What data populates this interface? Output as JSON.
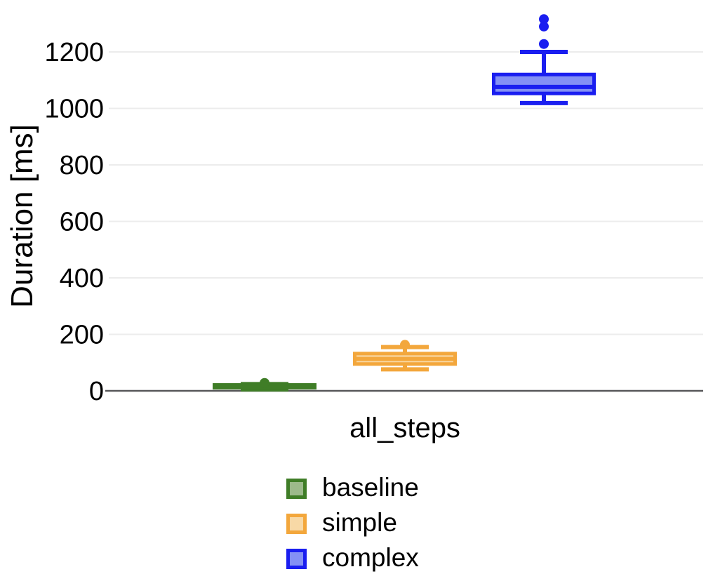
{
  "chart_data": {
    "type": "boxplot",
    "title": "",
    "xlabel": "all_steps",
    "ylabel": "Duration [ms]",
    "categories": [
      "all_steps"
    ],
    "ylim": [
      0,
      1350
    ],
    "yticks": [
      0,
      200,
      400,
      600,
      800,
      1000,
      1200
    ],
    "grid": true,
    "grid_color": "#ececec",
    "axis_line_color": "#58585a",
    "tick_label_color": "#000000",
    "legend_position": "bottom-center",
    "series": [
      {
        "name": "baseline",
        "line_color": "#3f7d27",
        "fill_color": "#9cba8b",
        "box": {
          "whisker_low": 5,
          "q1": 11,
          "median": 15,
          "q3": 21,
          "whisker_high": 24,
          "outliers": [
            28
          ]
        }
      },
      {
        "name": "simple",
        "line_color": "#f3a73c",
        "fill_color": "#f8d9a6",
        "box": {
          "whisker_low": 76,
          "q1": 95,
          "median": 113,
          "q3": 132,
          "whisker_high": 155,
          "outliers": [
            163
          ]
        }
      },
      {
        "name": "complex",
        "line_color": "#1a1ef0",
        "fill_color": "#8490f5",
        "box": {
          "whisker_low": 1019,
          "q1": 1053,
          "median": 1076,
          "q3": 1120,
          "whisker_high": 1200,
          "outliers": [
            1228,
            1290,
            1316
          ]
        }
      }
    ]
  }
}
